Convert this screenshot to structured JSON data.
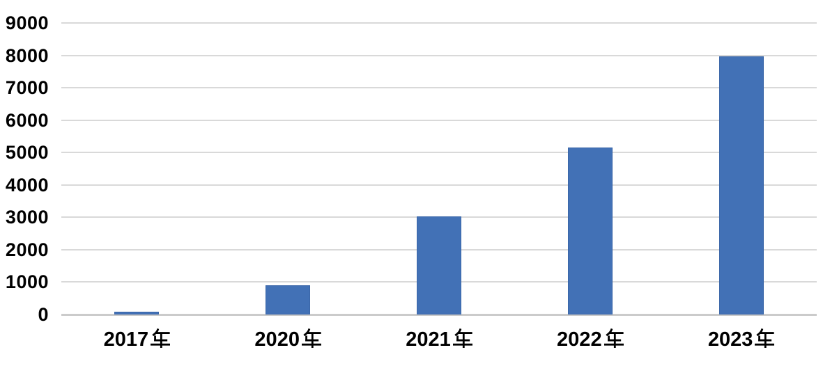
{
  "chart_data": {
    "type": "bar",
    "title": "",
    "xlabel": "",
    "ylabel": "",
    "categories": [
      "2017年",
      "2020年",
      "2021年",
      "2022年",
      "2023年"
    ],
    "values": [
      90,
      910,
      3020,
      5150,
      7970
    ],
    "ylim": [
      0,
      9000
    ],
    "ytick_interval": 1000,
    "ytick_labels": [
      "0",
      "1000",
      "2000",
      "3000",
      "4000",
      "5000",
      "6000",
      "7000",
      "8000",
      "9000"
    ],
    "grid": true,
    "legend_position": "none",
    "bar_color": "#4271B6",
    "bar_border_color": "#3A66A8",
    "gridline_color": "#D9D9D9",
    "axis_line_color": "#CBCBCB",
    "label_color": "#000000"
  }
}
